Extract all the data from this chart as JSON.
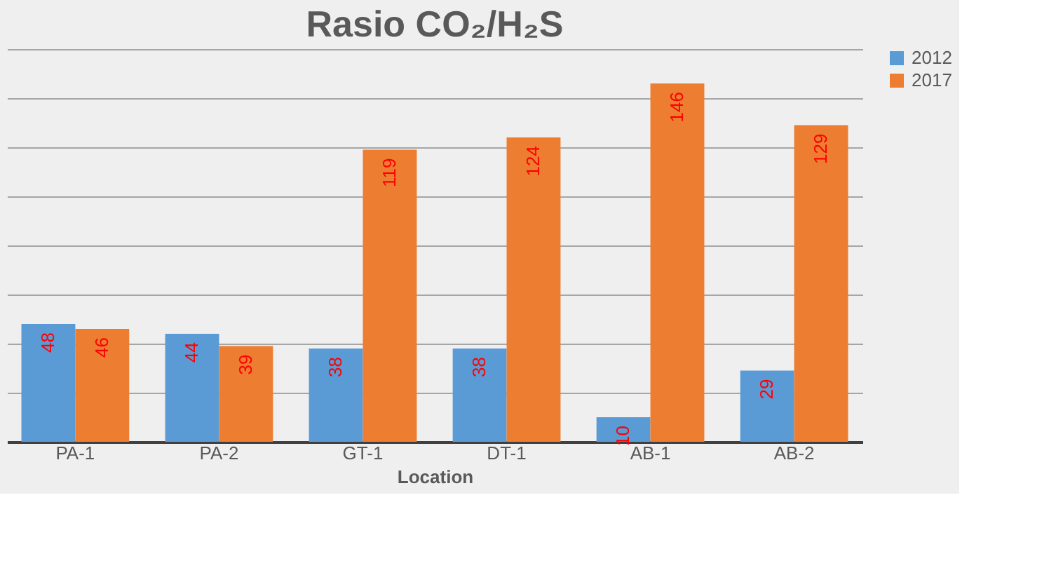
{
  "chart_data": {
    "type": "bar",
    "title": "Rasio CO₂/H₂S",
    "xlabel": "Location",
    "categories": [
      "PA-1",
      "PA-2",
      "GT-1",
      "DT-1",
      "AB-1",
      "AB-2"
    ],
    "series": [
      {
        "name": "2012",
        "color": "#5b9bd5",
        "values": [
          48,
          44,
          38,
          38,
          10,
          29
        ]
      },
      {
        "name": "2017",
        "color": "#ed7d31",
        "values": [
          46,
          39,
          119,
          124,
          146,
          129
        ]
      }
    ],
    "ylim": [
      0,
      160
    ],
    "yticks": [
      {
        "value": 0,
        "label": null
      },
      {
        "value": 20,
        "label": null
      },
      {
        "value": 40,
        "label": null
      },
      {
        "value": 60,
        "label": null
      },
      {
        "value": 80,
        "label": null
      },
      {
        "value": 100,
        "label": null
      },
      {
        "value": 120,
        "label": null
      },
      {
        "value": 140,
        "label": null
      },
      {
        "value": 160,
        "label": null
      }
    ],
    "tick_labels": "x",
    "grid": "y",
    "legend": "right",
    "data_labels": true
  }
}
